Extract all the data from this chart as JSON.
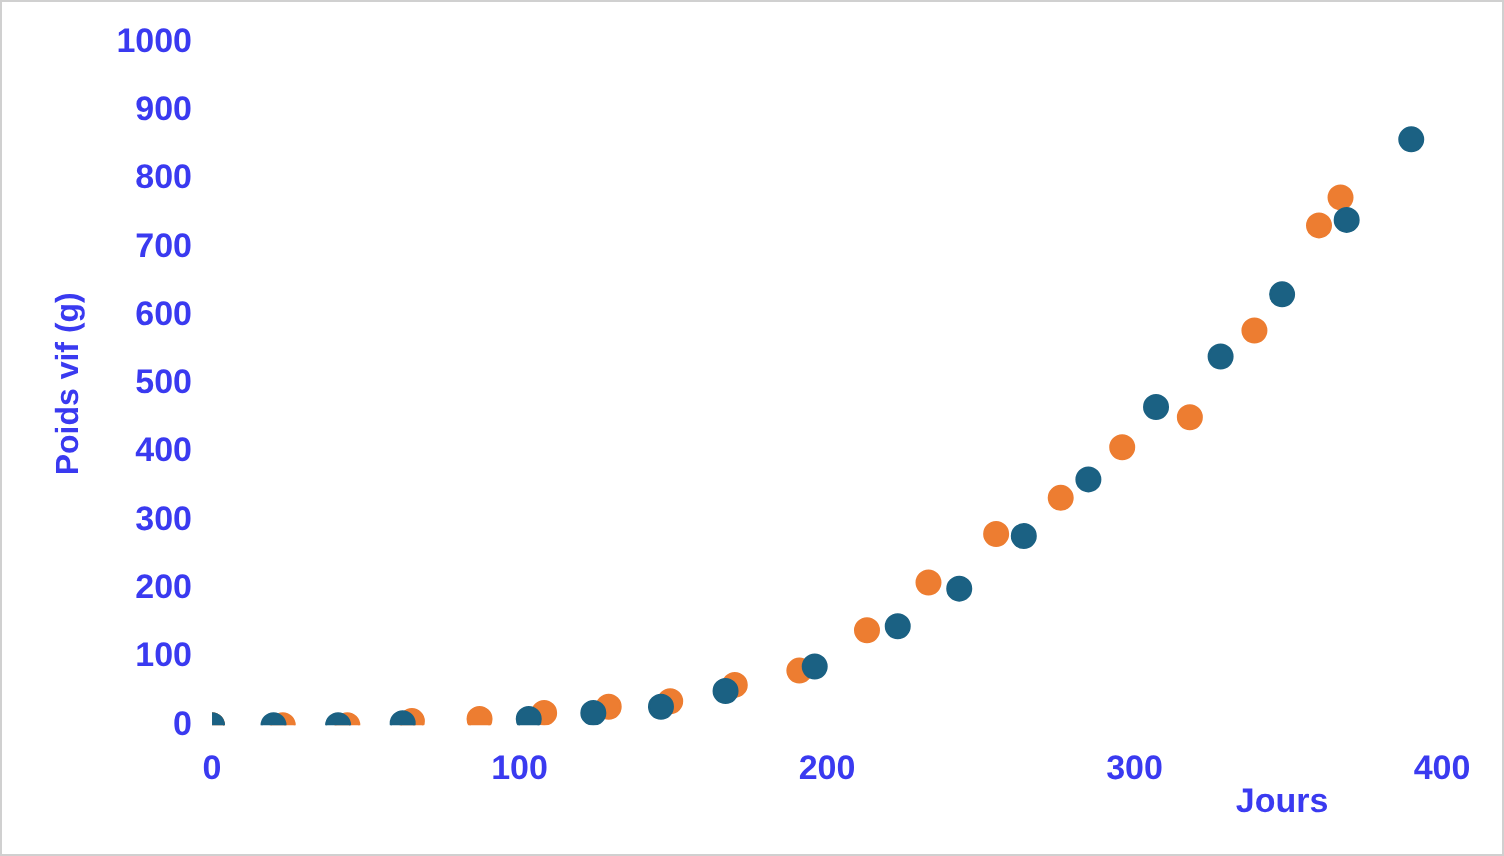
{
  "chart_data": {
    "type": "scatter",
    "xlabel": "Jours",
    "ylabel": "Poids vif (g)",
    "xlim": [
      0,
      400
    ],
    "xticks": [
      0,
      100,
      200,
      300,
      400
    ],
    "ylim": [
      0,
      1000
    ],
    "yticks": [
      0,
      100,
      200,
      300,
      400,
      500,
      600,
      700,
      800,
      900,
      1000
    ],
    "grid": false,
    "legend": false,
    "marker": "circle",
    "series": [
      {
        "color": "#1b6183",
        "x": [
          0,
          20,
          41,
          62,
          103,
          124,
          146,
          167,
          196,
          223,
          243,
          264,
          285,
          307,
          328,
          348,
          369,
          390
        ],
        "values": [
          0,
          0,
          0,
          3,
          9,
          18,
          27,
          50,
          86,
          145,
          200,
          277,
          360,
          466,
          540,
          631,
          740,
          858
        ]
      },
      {
        "color": "#ed7d31",
        "x": [
          0,
          23,
          44,
          65,
          87,
          108,
          129,
          149,
          170,
          191,
          213,
          233,
          255,
          276,
          296,
          318,
          339,
          360,
          367
        ],
        "values": [
          0,
          0,
          0,
          6,
          9,
          18,
          27,
          35,
          59,
          80,
          139,
          209,
          280,
          333,
          407,
          451,
          578,
          732,
          773
        ]
      }
    ]
  }
}
